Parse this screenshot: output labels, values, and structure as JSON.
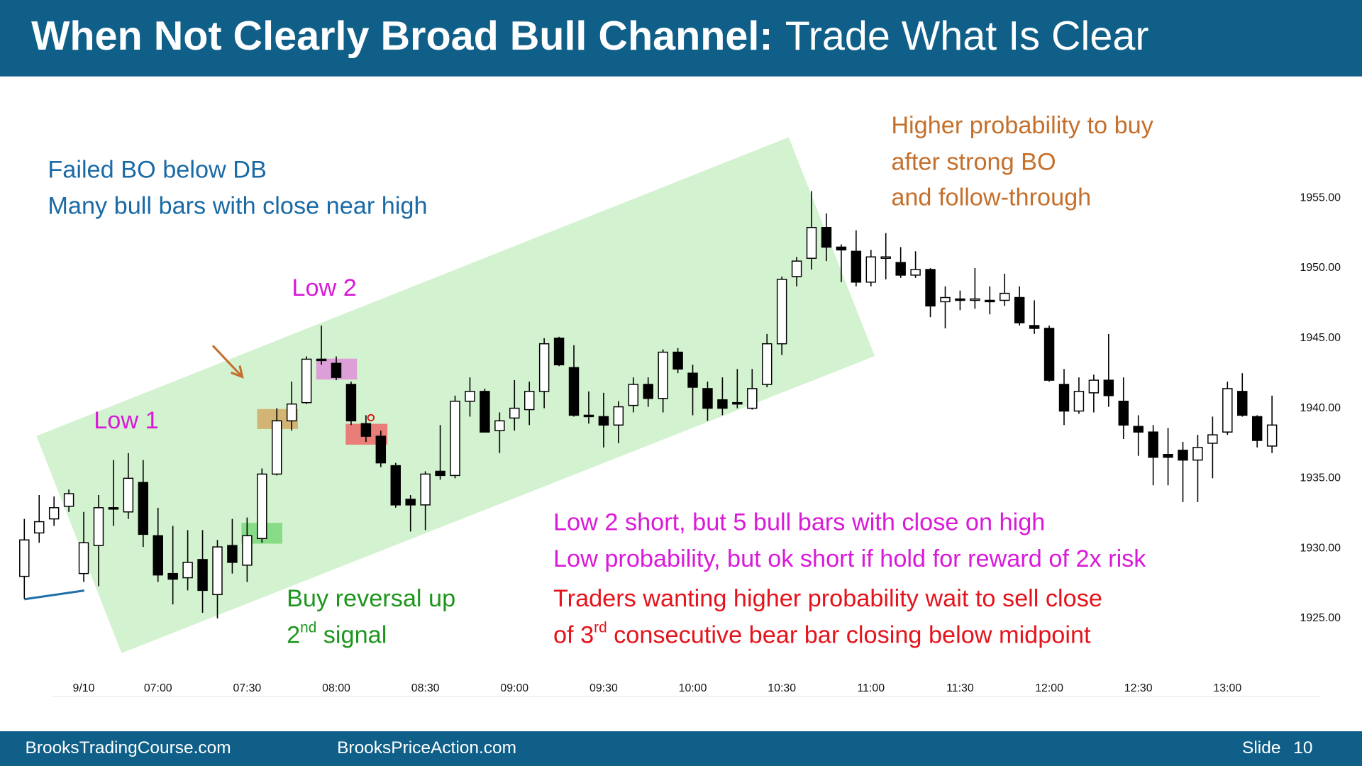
{
  "header": {
    "title_bold": "When Not Clearly Broad Bull Channel:",
    "title_rest": "Trade What Is Clear"
  },
  "chart_data": {
    "type": "candlestick",
    "categories": [
      null,
      null,
      null,
      null,
      "9/10",
      null,
      null,
      null,
      null,
      "07:00",
      null,
      null,
      null,
      null,
      null,
      "07:30",
      null,
      null,
      null,
      null,
      null,
      "08:00",
      null,
      null,
      null,
      null,
      null,
      "08:30",
      null,
      null,
      null,
      null,
      null,
      "09:00",
      null,
      null,
      null,
      null,
      null,
      "09:30",
      null,
      null,
      null,
      null,
      null,
      "10:00",
      null,
      null,
      null,
      null,
      null,
      "10:30",
      null,
      null,
      null,
      null,
      null,
      "11:00",
      null,
      null,
      null,
      null,
      null,
      "11:30",
      null,
      null,
      null,
      null,
      null,
      "12:00",
      null,
      null,
      null,
      null,
      null,
      "12:30",
      null,
      null,
      null,
      null,
      null,
      "13:00",
      null,
      null,
      null
    ],
    "open": [
      1928.0,
      1931.1,
      1932.1,
      1933.0,
      1928.2,
      1930.2,
      1932.9,
      1932.6,
      1934.7,
      1930.9,
      1928.2,
      1927.9,
      1929.2,
      1926.7,
      1930.2,
      1928.8,
      1930.7,
      1935.3,
      1939.1,
      1940.4,
      1943.5,
      1943.2,
      1941.7,
      1938.9,
      1938.0,
      1935.9,
      1933.5,
      1933.1,
      1935.5,
      1935.2,
      1940.5,
      1941.2,
      1938.4,
      1939.3,
      1939.9,
      1941.2,
      1945.0,
      1942.9,
      1939.5,
      1939.4,
      1938.8,
      1940.2,
      1941.7,
      1940.7,
      1944.0,
      1942.5,
      1941.4,
      1940.6,
      1940.4,
      1940.0,
      1941.7,
      1944.6,
      1949.4,
      1950.7,
      1952.9,
      1951.5,
      1951.2,
      1949.0,
      1950.7,
      1950.4,
      1949.5,
      1949.9,
      1947.6,
      1947.8,
      1947.7,
      1947.7,
      1947.7,
      1947.9,
      1945.9,
      1945.7,
      1941.7,
      1939.8,
      1941.1,
      1942.0,
      1940.5,
      1938.7,
      1938.3,
      1936.7,
      1937.0,
      1936.3,
      1937.5,
      1938.3,
      1941.2,
      1939.4,
      1937.3
    ],
    "high": [
      1932.1,
      1933.8,
      1933.7,
      1934.2,
      1932.6,
      1933.8,
      1936.3,
      1936.8,
      1936.3,
      1932.9,
      1931.6,
      1931.3,
      1931.3,
      1930.6,
      1932.1,
      1932.2,
      1935.7,
      1940.0,
      1941.9,
      1943.7,
      1945.9,
      1943.7,
      1941.9,
      1939.5,
      1938.4,
      1936.1,
      1933.8,
      1935.5,
      1938.8,
      1940.9,
      1942.2,
      1941.4,
      1939.7,
      1942.0,
      1941.9,
      1945.0,
      1945.1,
      1944.5,
      1941.2,
      1941.1,
      1940.5,
      1942.2,
      1942.2,
      1944.2,
      1944.3,
      1943.1,
      1941.9,
      1942.2,
      1942.8,
      1942.8,
      1945.3,
      1949.4,
      1950.8,
      1955.5,
      1953.9,
      1951.7,
      1952.7,
      1951.3,
      1952.5,
      1951.5,
      1951.2,
      1950.0,
      1948.7,
      1948.4,
      1950.0,
      1948.7,
      1949.6,
      1948.7,
      1947.7,
      1945.9,
      1942.8,
      1942.2,
      1942.4,
      1945.3,
      1942.2,
      1939.5,
      1938.8,
      1938.6,
      1937.6,
      1938.1,
      1939.4,
      1941.9,
      1942.5,
      1939.5,
      1940.9
    ],
    "low": [
      1926.4,
      1930.4,
      1931.6,
      1932.6,
      1927.6,
      1927.3,
      1931.6,
      1932.1,
      1930.1,
      1927.6,
      1926.0,
      1927.0,
      1925.4,
      1925.0,
      1928.2,
      1927.6,
      1930.4,
      1935.2,
      1938.4,
      1940.3,
      1943.1,
      1942.0,
      1938.8,
      1937.6,
      1935.8,
      1932.9,
      1931.2,
      1931.3,
      1934.9,
      1935.0,
      1939.4,
      1938.3,
      1936.8,
      1938.4,
      1938.8,
      1940.0,
      1943.0,
      1939.4,
      1938.9,
      1937.2,
      1937.5,
      1939.7,
      1940.1,
      1939.7,
      1942.5,
      1939.5,
      1939.1,
      1939.5,
      1940.0,
      1939.9,
      1941.5,
      1943.8,
      1948.7,
      1949.9,
      1950.5,
      1949.0,
      1948.7,
      1948.7,
      1949.2,
      1949.3,
      1949.3,
      1946.5,
      1945.7,
      1947.0,
      1947.1,
      1946.7,
      1947.3,
      1945.9,
      1945.3,
      1941.9,
      1938.8,
      1939.6,
      1939.7,
      1940.1,
      1937.8,
      1936.6,
      1934.5,
      1934.5,
      1933.3,
      1933.3,
      1935.0,
      1938.1,
      1939.4,
      1937.2,
      1936.8
    ],
    "close": [
      1930.6,
      1931.9,
      1932.9,
      1933.9,
      1930.4,
      1932.9,
      1932.8,
      1935.0,
      1931.0,
      1928.1,
      1927.8,
      1929.0,
      1927.0,
      1930.1,
      1929.0,
      1930.9,
      1935.3,
      1939.1,
      1940.3,
      1943.5,
      1943.4,
      1942.2,
      1939.1,
      1938.0,
      1936.1,
      1933.1,
      1933.1,
      1935.3,
      1935.2,
      1940.5,
      1941.2,
      1938.3,
      1939.1,
      1940.0,
      1941.2,
      1944.6,
      1943.1,
      1939.5,
      1939.4,
      1938.8,
      1940.1,
      1941.7,
      1940.7,
      1944.0,
      1942.8,
      1941.5,
      1940.0,
      1940.0,
      1940.3,
      1941.4,
      1944.6,
      1949.2,
      1950.5,
      1952.9,
      1951.5,
      1951.3,
      1949.0,
      1950.8,
      1950.8,
      1949.5,
      1949.9,
      1947.3,
      1947.9,
      1947.7,
      1947.8,
      1947.6,
      1948.2,
      1946.1,
      1945.7,
      1942.0,
      1939.8,
      1941.2,
      1942.0,
      1940.9,
      1938.8,
      1938.3,
      1936.5,
      1936.5,
      1936.3,
      1937.2,
      1938.1,
      1941.4,
      1939.5,
      1937.7,
      1938.8
    ],
    "up_color": "#ffffff",
    "down_color": "#000000",
    "ylim": [
      1921.5,
      1963
    ],
    "yticks": [
      {
        "value": 1925,
        "label": "1925.00"
      },
      {
        "value": 1930,
        "label": "1930.00"
      },
      {
        "value": 1935,
        "label": "1935.00"
      },
      {
        "value": 1940,
        "label": "1940.00"
      },
      {
        "value": 1945,
        "label": "1945.00"
      },
      {
        "value": 1950,
        "label": "1950.00"
      },
      {
        "value": 1955,
        "label": "1955.00"
      }
    ]
  },
  "annotations": {
    "blue": [
      "Failed BO below DB",
      "Many bull bars with close near high"
    ],
    "orange": [
      "Higher probability to buy",
      "after strong BO",
      "and follow-through"
    ],
    "low1": "Low 1",
    "low2": "Low 2",
    "magenta": [
      "Low 2 short, but 5 bull bars with close on high",
      "Low probability, but ok short if hold for reward of 2x risk"
    ],
    "green": {
      "line1": "Buy reversal up",
      "num": "2",
      "sup": "nd",
      "rest": " signal"
    },
    "red": {
      "line1": "Traders wanting higher probability wait to sell close",
      "pre": "of 3",
      "sup": "rd",
      "rest": " consecutive bear bar closing below midpoint"
    }
  },
  "footer": {
    "left": "BrooksTradingCourse.com",
    "middle": "BrooksPriceAction.com",
    "slide_label": "Slide",
    "slide_number": "10"
  }
}
